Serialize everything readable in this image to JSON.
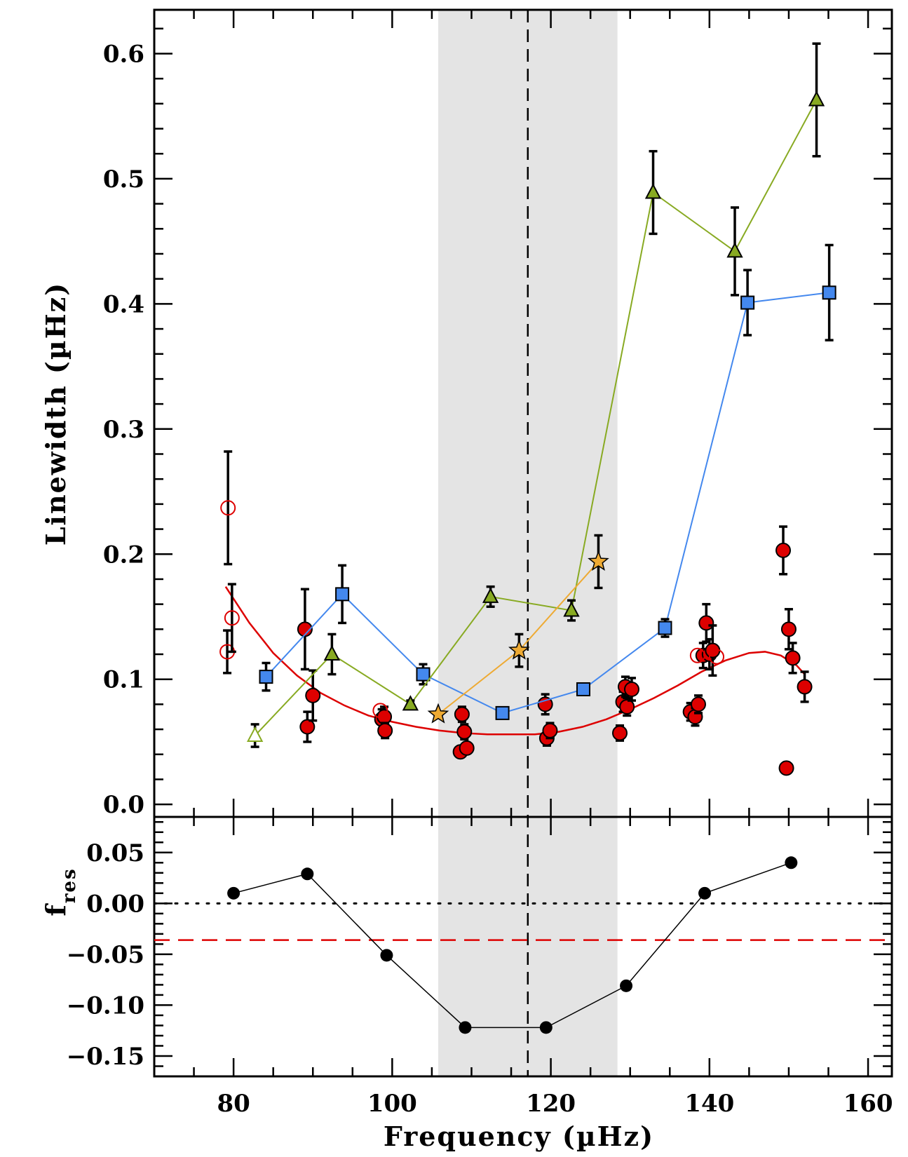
{
  "chart_data": [
    {
      "panel": "top",
      "type": "scatter",
      "ylabel": "Linewidth (µHz)",
      "xlim": [
        70,
        163
      ],
      "ylim": [
        -0.01,
        0.635
      ],
      "x_ticks": [
        80,
        100,
        120,
        140,
        160
      ],
      "y_ticks": [
        "0.0",
        "0.1",
        "0.2",
        "0.3",
        "0.4",
        "0.5",
        "0.6"
      ],
      "shaded_band": [
        105.8,
        128.4
      ],
      "vline": 117.1,
      "colors": {
        "red": "#dd0000",
        "blue": "#4488ee",
        "green": "#88aa22",
        "orange": "#eeaa33",
        "band": "#e4e4e4"
      },
      "series": [
        {
          "name": "l=0 filled circles",
          "marker": "circle",
          "filled": true,
          "color": "#dd0000",
          "points": [
            {
              "x": 89.0,
              "y": 0.14,
              "err": 0.032
            },
            {
              "x": 89.3,
              "y": 0.062,
              "err": 0.012
            },
            {
              "x": 90.0,
              "y": 0.087,
              "err": 0.02
            },
            {
              "x": 98.7,
              "y": 0.068,
              "err": 0.008
            },
            {
              "x": 99.0,
              "y": 0.07,
              "err": 0.008
            },
            {
              "x": 99.1,
              "y": 0.059,
              "err": 0.006
            },
            {
              "x": 108.6,
              "y": 0.042,
              "err": 0.004
            },
            {
              "x": 108.8,
              "y": 0.072,
              "err": 0.006
            },
            {
              "x": 109.1,
              "y": 0.058,
              "err": 0.006
            },
            {
              "x": 109.4,
              "y": 0.045,
              "err": 0.004
            },
            {
              "x": 119.3,
              "y": 0.08,
              "err": 0.008
            },
            {
              "x": 119.5,
              "y": 0.053,
              "err": 0.006
            },
            {
              "x": 119.9,
              "y": 0.059,
              "err": 0.006
            },
            {
              "x": 128.7,
              "y": 0.057,
              "err": 0.006
            },
            {
              "x": 129.1,
              "y": 0.082,
              "err": 0.008
            },
            {
              "x": 129.4,
              "y": 0.094,
              "err": 0.008
            },
            {
              "x": 129.6,
              "y": 0.078,
              "err": 0.007
            },
            {
              "x": 130.2,
              "y": 0.092,
              "err": 0.009
            },
            {
              "x": 137.6,
              "y": 0.074,
              "err": 0.007
            },
            {
              "x": 138.2,
              "y": 0.07,
              "err": 0.007
            },
            {
              "x": 138.6,
              "y": 0.08,
              "err": 0.007
            },
            {
              "x": 139.2,
              "y": 0.119,
              "err": 0.01
            },
            {
              "x": 139.6,
              "y": 0.145,
              "err": 0.015
            },
            {
              "x": 140.0,
              "y": 0.12,
              "err": 0.012
            },
            {
              "x": 140.4,
              "y": 0.123,
              "err": 0.02
            },
            {
              "x": 149.3,
              "y": 0.203,
              "err": 0.019
            },
            {
              "x": 149.7,
              "y": 0.029,
              "err": 0.003
            },
            {
              "x": 150.0,
              "y": 0.14,
              "err": 0.016
            },
            {
              "x": 150.5,
              "y": 0.117,
              "err": 0.012
            },
            {
              "x": 152.0,
              "y": 0.094,
              "err": 0.012
            }
          ]
        },
        {
          "name": "l=0 open circles",
          "marker": "circle",
          "filled": false,
          "color": "#dd0000",
          "points": [
            {
              "x": 79.3,
              "y": 0.237,
              "err": 0.045
            },
            {
              "x": 79.2,
              "y": 0.122,
              "err": 0.017
            },
            {
              "x": 79.8,
              "y": 0.149,
              "err": 0.027
            },
            {
              "x": 98.5,
              "y": 0.075,
              "err": 0.0
            },
            {
              "x": 138.5,
              "y": 0.119,
              "err": 0.0
            },
            {
              "x": 140.9,
              "y": 0.118,
              "err": 0.0
            }
          ]
        },
        {
          "name": "blue squares",
          "marker": "square",
          "filled": true,
          "color": "#4488ee",
          "line": true,
          "points": [
            {
              "x": 84.1,
              "y": 0.102,
              "err": 0.011
            },
            {
              "x": 93.7,
              "y": 0.168,
              "err": 0.023
            },
            {
              "x": 103.9,
              "y": 0.104,
              "err": 0.008
            },
            {
              "x": 113.9,
              "y": 0.073,
              "err": 0.003
            },
            {
              "x": 124.1,
              "y": 0.092,
              "err": 0.004
            },
            {
              "x": 134.4,
              "y": 0.141,
              "err": 0.007
            },
            {
              "x": 144.8,
              "y": 0.401,
              "err": 0.026
            },
            {
              "x": 155.1,
              "y": 0.409,
              "err": 0.038
            }
          ]
        },
        {
          "name": "green triangles",
          "marker": "triangle",
          "filled": true,
          "color": "#88aa22",
          "line": true,
          "points": [
            {
              "x": 82.7,
              "y": 0.055,
              "err": 0.009,
              "open": true
            },
            {
              "x": 92.4,
              "y": 0.12,
              "err": 0.016
            },
            {
              "x": 102.3,
              "y": 0.08,
              "err": 0.003
            },
            {
              "x": 112.4,
              "y": 0.166,
              "err": 0.008
            },
            {
              "x": 122.6,
              "y": 0.155,
              "err": 0.008
            },
            {
              "x": 132.9,
              "y": 0.489,
              "err": 0.033
            },
            {
              "x": 143.2,
              "y": 0.442,
              "err": 0.035
            },
            {
              "x": 153.5,
              "y": 0.563,
              "err": 0.045
            }
          ]
        },
        {
          "name": "orange stars",
          "marker": "star",
          "filled": true,
          "color": "#eeaa33",
          "line": true,
          "points": [
            {
              "x": 105.8,
              "y": 0.072,
              "err": 0.0
            },
            {
              "x": 116.0,
              "y": 0.123,
              "err": 0.013
            },
            {
              "x": 126.0,
              "y": 0.194,
              "err": 0.021
            }
          ]
        }
      ],
      "fit_curve": {
        "name": "red fit",
        "color": "#dd0000",
        "x": [
          79.0,
          82.0,
          85.0,
          88.0,
          91.0,
          94.0,
          97.0,
          100.0,
          103.0,
          106.0,
          109.0,
          112.0,
          115.0,
          118.0,
          121.0,
          124.0,
          127.0,
          130.0,
          133.0,
          136.0,
          139.0,
          142.0,
          145.0,
          147.0,
          149.0,
          151.0,
          152.0
        ],
        "y": [
          0.174,
          0.145,
          0.121,
          0.103,
          0.089,
          0.079,
          0.071,
          0.066,
          0.062,
          0.059,
          0.057,
          0.056,
          0.056,
          0.056,
          0.058,
          0.062,
          0.068,
          0.076,
          0.085,
          0.095,
          0.106,
          0.115,
          0.121,
          0.122,
          0.119,
          0.111,
          0.104
        ]
      }
    },
    {
      "panel": "bottom",
      "type": "line",
      "xlabel": "Frequency (µHz)",
      "ylabel": "f",
      "ylabel_subscript": "res",
      "xlim": [
        70,
        163
      ],
      "ylim": [
        -0.17,
        0.085
      ],
      "x_ticks": [
        80,
        100,
        120,
        140,
        160
      ],
      "y_ticks": [
        "0.05",
        "0.00",
        "−0.05",
        "−0.10",
        "−0.15"
      ],
      "hline_dotted": 0.0,
      "hline_dashed": -0.036,
      "x": [
        80.0,
        89.3,
        99.3,
        109.2,
        119.4,
        129.5,
        139.4,
        150.3
      ],
      "values": [
        0.01,
        0.029,
        -0.051,
        -0.122,
        -0.122,
        -0.081,
        0.01,
        0.04
      ]
    }
  ]
}
